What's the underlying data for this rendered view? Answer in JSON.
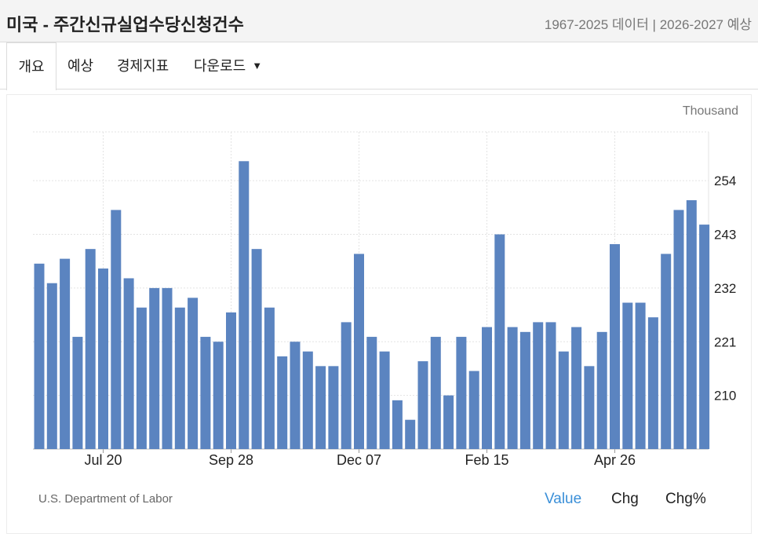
{
  "header": {
    "title": "미국 - 주간신규실업수당신청건수",
    "subtitle": "1967-2025 데이터 | 2026-2027 예상"
  },
  "tabs": [
    {
      "label": "개요",
      "active": true
    },
    {
      "label": "예상",
      "active": false
    },
    {
      "label": "경제지표",
      "active": false
    },
    {
      "label": "다운로드",
      "active": false,
      "dropdown": true
    }
  ],
  "footer": {
    "source": "U.S. Department of Labor",
    "toggles": [
      {
        "label": "Value",
        "active": true
      },
      {
        "label": "Chg",
        "active": false
      },
      {
        "label": "Chg%",
        "active": false
      }
    ]
  },
  "colors": {
    "bar": "#5b84c0",
    "accent": "#3a8fd8",
    "grid": "#e3e3e3"
  },
  "chart_data": {
    "type": "bar",
    "unit_label": "Thousand",
    "y_ticks": [
      210,
      221,
      232,
      243,
      254
    ],
    "ylim": [
      199,
      264
    ],
    "x_tick_labels": [
      {
        "label": "Jul 20",
        "index": 5
      },
      {
        "label": "Sep 28",
        "index": 15
      },
      {
        "label": "Dec 07",
        "index": 25
      },
      {
        "label": "Feb 15",
        "index": 35
      },
      {
        "label": "Apr 26",
        "index": 45
      }
    ],
    "grid": true,
    "values": [
      237,
      233,
      238,
      222,
      240,
      236,
      248,
      234,
      228,
      232,
      232,
      228,
      230,
      222,
      221,
      227,
      258,
      240,
      228,
      218,
      221,
      219,
      216,
      216,
      225,
      239,
      222,
      219,
      209,
      205,
      217,
      222,
      210,
      222,
      215,
      224,
      243,
      224,
      223,
      225,
      225,
      219,
      224,
      216,
      223,
      241,
      229,
      229,
      226,
      239,
      248,
      250,
      245
    ]
  }
}
